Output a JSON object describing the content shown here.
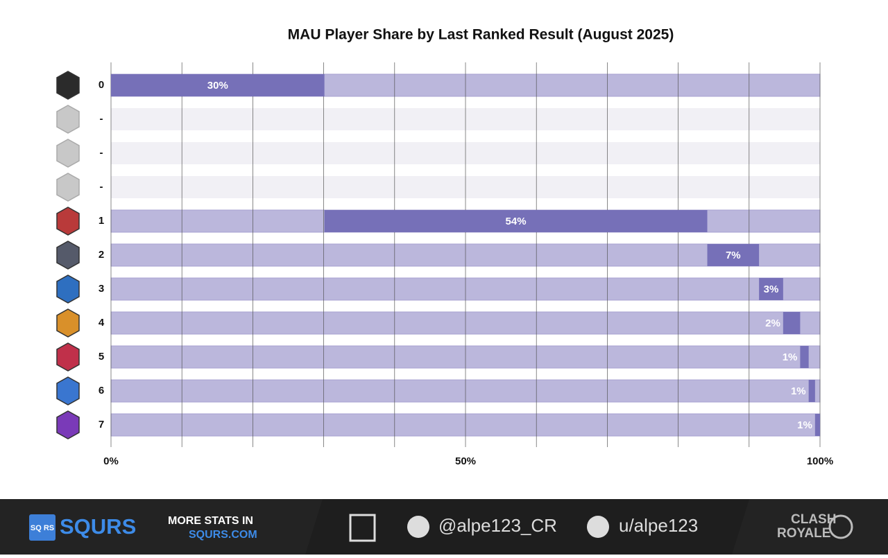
{
  "chart_data": {
    "type": "waterfall-bar",
    "title": "MAU Player Share by Last Ranked Result (August 2025)",
    "categories": [
      "0",
      "-",
      "-",
      "-",
      "1",
      "2",
      "3",
      "4",
      "5",
      "6",
      "7"
    ],
    "values": [
      30.1,
      null,
      null,
      null,
      54.0,
      7.3,
      3.4,
      2.4,
      1.2,
      0.9,
      0.7
    ],
    "value_labels": [
      "30%",
      null,
      null,
      null,
      "54%",
      "7%",
      "3%",
      "2%",
      "1%",
      "1%",
      "1%"
    ],
    "color": "#7670b8",
    "track_color": "#bbb7dc",
    "empty_track_color": "#f1f0f5",
    "xlim": [
      0,
      100
    ],
    "xticks": [
      {
        "value": 0,
        "label": "0%"
      },
      {
        "value": 10,
        "label": null
      },
      {
        "value": 20,
        "label": null
      },
      {
        "value": 30,
        "label": null
      },
      {
        "value": 40,
        "label": null
      },
      {
        "value": 50,
        "label": "50%"
      },
      {
        "value": 60,
        "label": null
      },
      {
        "value": 70,
        "label": null
      },
      {
        "value": 80,
        "label": null
      },
      {
        "value": 90,
        "label": null
      },
      {
        "value": 100,
        "label": "100%"
      }
    ],
    "grid": true
  },
  "footer": {
    "brand": "SQURS",
    "promo_line1": "MORE STATS IN",
    "promo_line2": "SQURS.COM",
    "twitter": "@alpe123_CR",
    "reddit": "u/alpe123",
    "game_line1": "CLASH",
    "game_line2": "ROYALE"
  }
}
